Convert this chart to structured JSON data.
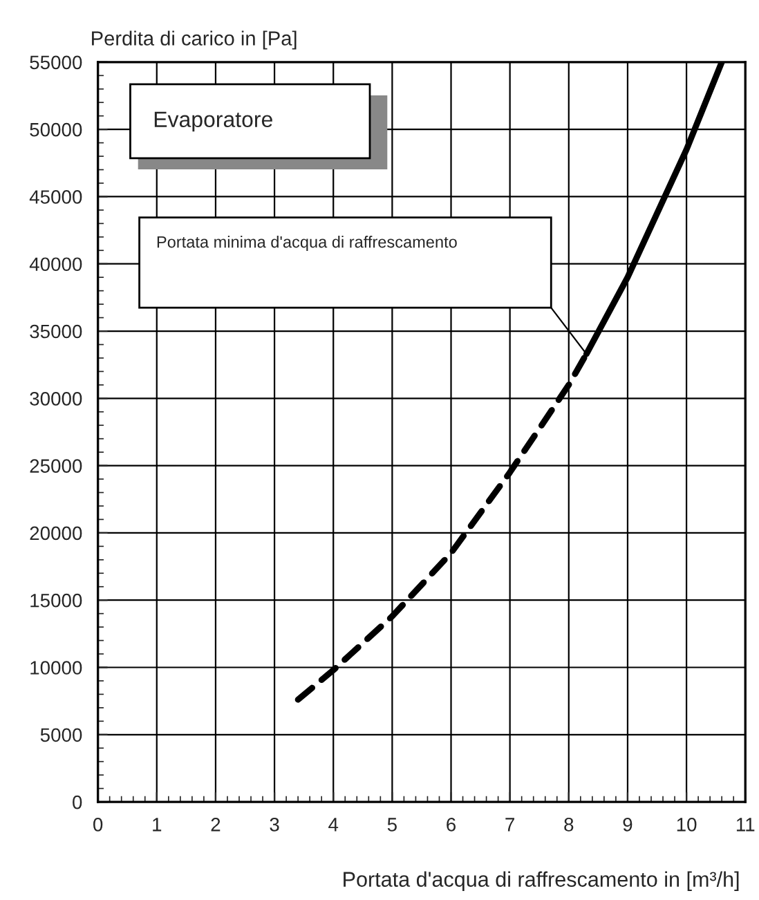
{
  "chart_data": {
    "type": "line",
    "xlabel": "Portata d'acqua di raffrescamento in [m³/h]",
    "ylabel": "Perdita di carico in [Pa]",
    "title": "Evaporatore",
    "series": [
      {
        "color": "#000000",
        "line_style": "dashed",
        "x": [
          3.4,
          4,
          5,
          6,
          7,
          8,
          8.3
        ],
        "values": [
          7600,
          9800,
          13800,
          18500,
          24500,
          31000,
          33300
        ]
      },
      {
        "color": "#000000",
        "line_style": "solid",
        "x": [
          8.3,
          9,
          10,
          10.6
        ],
        "values": [
          33300,
          39000,
          48500,
          55000
        ]
      }
    ],
    "annotations": [
      "Portata minima d'acqua di raffrescamento"
    ],
    "xlim": [
      0,
      11
    ],
    "xticks": [
      0,
      1,
      2,
      3,
      4,
      5,
      6,
      7,
      8,
      9,
      10,
      11
    ],
    "ylim": [
      0,
      55000
    ],
    "yticks": [
      0,
      5000,
      10000,
      15000,
      20000,
      25000,
      30000,
      35000,
      40000,
      45000,
      50000,
      55000
    ],
    "grid": true,
    "marker": "none"
  }
}
